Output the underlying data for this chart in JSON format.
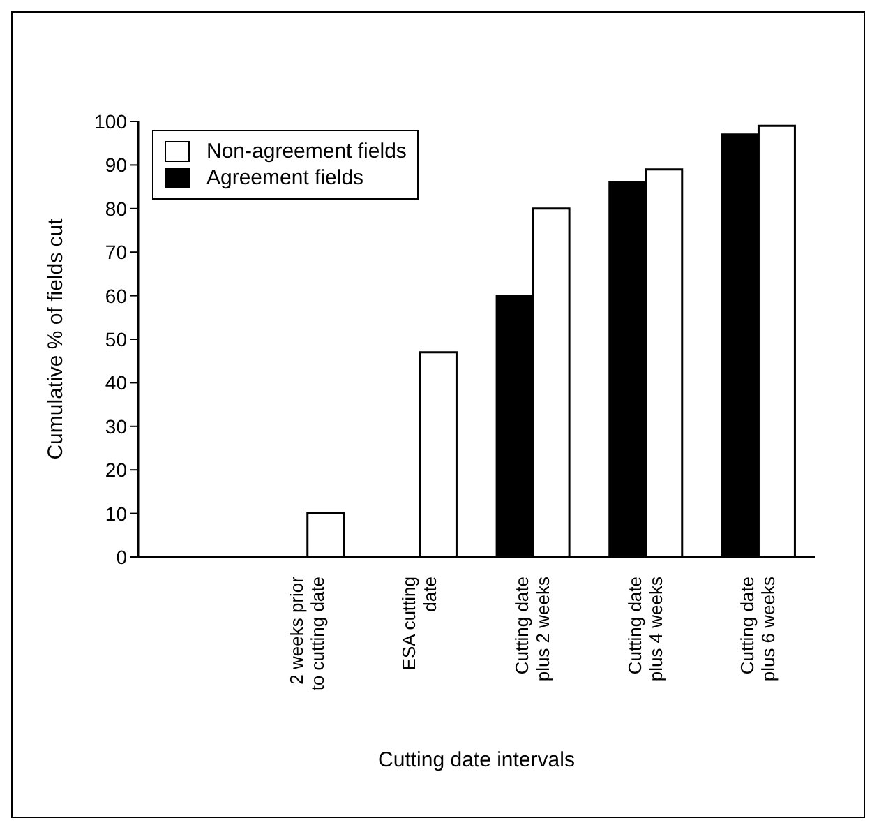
{
  "chart_data": {
    "type": "bar",
    "xlabel": "Cutting date intervals",
    "ylabel": "Cumulative % of fields cut",
    "categories": [
      null,
      "2 weeks prior\nto cutting date",
      "ESA cutting\ndate",
      "Cutting date\nplus 2 weeks",
      "Cutting date\nplus 4 weeks",
      "Cutting date\nplus 6 weeks"
    ],
    "series": [
      {
        "name": "Agreement fields",
        "color": "#000000",
        "values": [
          null,
          null,
          null,
          60,
          86,
          97
        ]
      },
      {
        "name": "Non-agreement fields",
        "color": "#ffffff",
        "values": [
          null,
          10,
          47,
          80,
          89,
          99
        ]
      }
    ],
    "ylim": [
      0,
      100
    ],
    "yticks": [
      0,
      10,
      20,
      30,
      40,
      50,
      60,
      70,
      80,
      90,
      100
    ],
    "grid": false,
    "legend": "top left"
  }
}
